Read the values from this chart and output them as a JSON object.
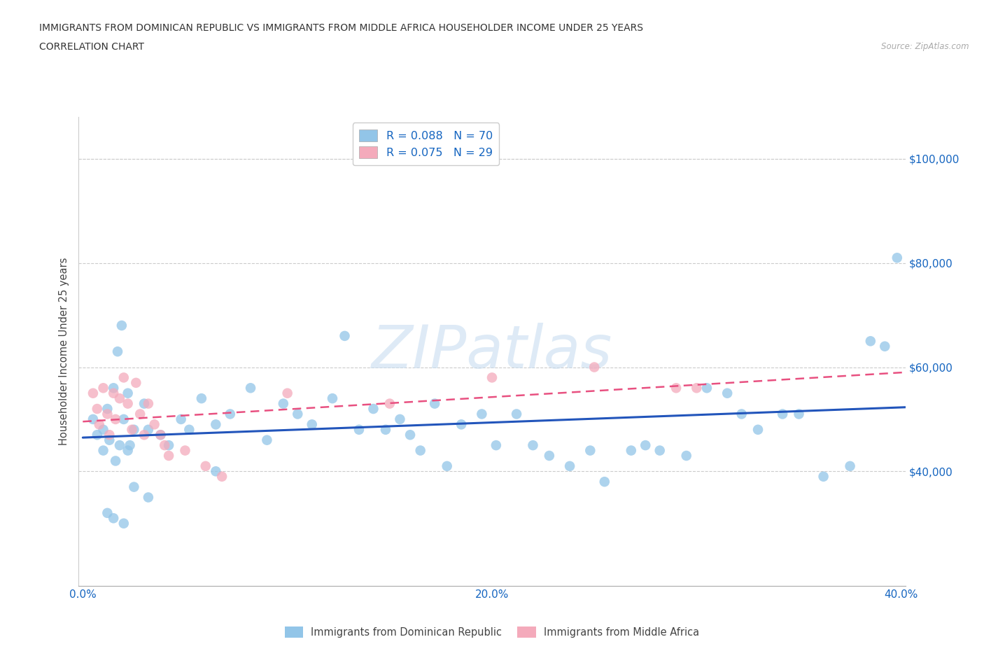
{
  "title_line1": "IMMIGRANTS FROM DOMINICAN REPUBLIC VS IMMIGRANTS FROM MIDDLE AFRICA HOUSEHOLDER INCOME UNDER 25 YEARS",
  "title_line2": "CORRELATION CHART",
  "source": "Source: ZipAtlas.com",
  "ylabel": "Householder Income Under 25 years",
  "xlim": [
    -0.002,
    0.402
  ],
  "ylim": [
    18000,
    108000
  ],
  "xticks": [
    0.0,
    0.1,
    0.2,
    0.3,
    0.4
  ],
  "xticklabels": [
    "0.0%",
    "",
    "20.0%",
    "",
    "40.0%"
  ],
  "yticks": [
    40000,
    60000,
    80000,
    100000
  ],
  "yticklabels": [
    "$40,000",
    "$60,000",
    "$80,000",
    "$100,000"
  ],
  "watermark": "ZIPatlas",
  "legend_blue_label": "R = 0.088   N = 70",
  "legend_pink_label": "R = 0.075   N = 29",
  "legend_bottom_blue": "Immigrants from Dominican Republic",
  "legend_bottom_pink": "Immigrants from Middle Africa",
  "blue_color": "#92C5E8",
  "pink_color": "#F4AABB",
  "blue_line_color": "#2255BB",
  "pink_line_color": "#E85080",
  "blue_scatter_x": [
    0.005,
    0.007,
    0.01,
    0.01,
    0.012,
    0.013,
    0.015,
    0.016,
    0.017,
    0.019,
    0.02,
    0.022,
    0.023,
    0.025,
    0.03,
    0.032,
    0.038,
    0.042,
    0.048,
    0.052,
    0.058,
    0.065,
    0.072,
    0.082,
    0.09,
    0.098,
    0.105,
    0.112,
    0.122,
    0.128,
    0.135,
    0.142,
    0.148,
    0.155,
    0.16,
    0.165,
    0.172,
    0.178,
    0.185,
    0.195,
    0.202,
    0.212,
    0.22,
    0.228,
    0.238,
    0.248,
    0.255,
    0.268,
    0.275,
    0.282,
    0.295,
    0.305,
    0.315,
    0.322,
    0.33,
    0.342,
    0.35,
    0.362,
    0.375,
    0.385,
    0.392,
    0.398,
    0.012,
    0.065,
    0.015,
    0.02,
    0.018,
    0.022,
    0.025,
    0.032
  ],
  "blue_scatter_y": [
    50000,
    47000,
    48000,
    44000,
    52000,
    46000,
    56000,
    42000,
    63000,
    68000,
    50000,
    55000,
    45000,
    48000,
    53000,
    48000,
    47000,
    45000,
    50000,
    48000,
    54000,
    49000,
    51000,
    56000,
    46000,
    53000,
    51000,
    49000,
    54000,
    66000,
    48000,
    52000,
    48000,
    50000,
    47000,
    44000,
    53000,
    41000,
    49000,
    51000,
    45000,
    51000,
    45000,
    43000,
    41000,
    44000,
    38000,
    44000,
    45000,
    44000,
    43000,
    56000,
    55000,
    51000,
    48000,
    51000,
    51000,
    39000,
    41000,
    65000,
    64000,
    81000,
    32000,
    40000,
    31000,
    30000,
    45000,
    44000,
    37000,
    35000
  ],
  "pink_scatter_x": [
    0.005,
    0.007,
    0.008,
    0.01,
    0.012,
    0.013,
    0.015,
    0.016,
    0.018,
    0.02,
    0.022,
    0.024,
    0.026,
    0.028,
    0.03,
    0.032,
    0.035,
    0.038,
    0.04,
    0.042,
    0.05,
    0.06,
    0.068,
    0.1,
    0.15,
    0.2,
    0.25,
    0.29,
    0.3
  ],
  "pink_scatter_y": [
    55000,
    52000,
    49000,
    56000,
    51000,
    47000,
    55000,
    50000,
    54000,
    58000,
    53000,
    48000,
    57000,
    51000,
    47000,
    53000,
    49000,
    47000,
    45000,
    43000,
    44000,
    41000,
    39000,
    55000,
    53000,
    58000,
    60000,
    56000,
    56000
  ]
}
